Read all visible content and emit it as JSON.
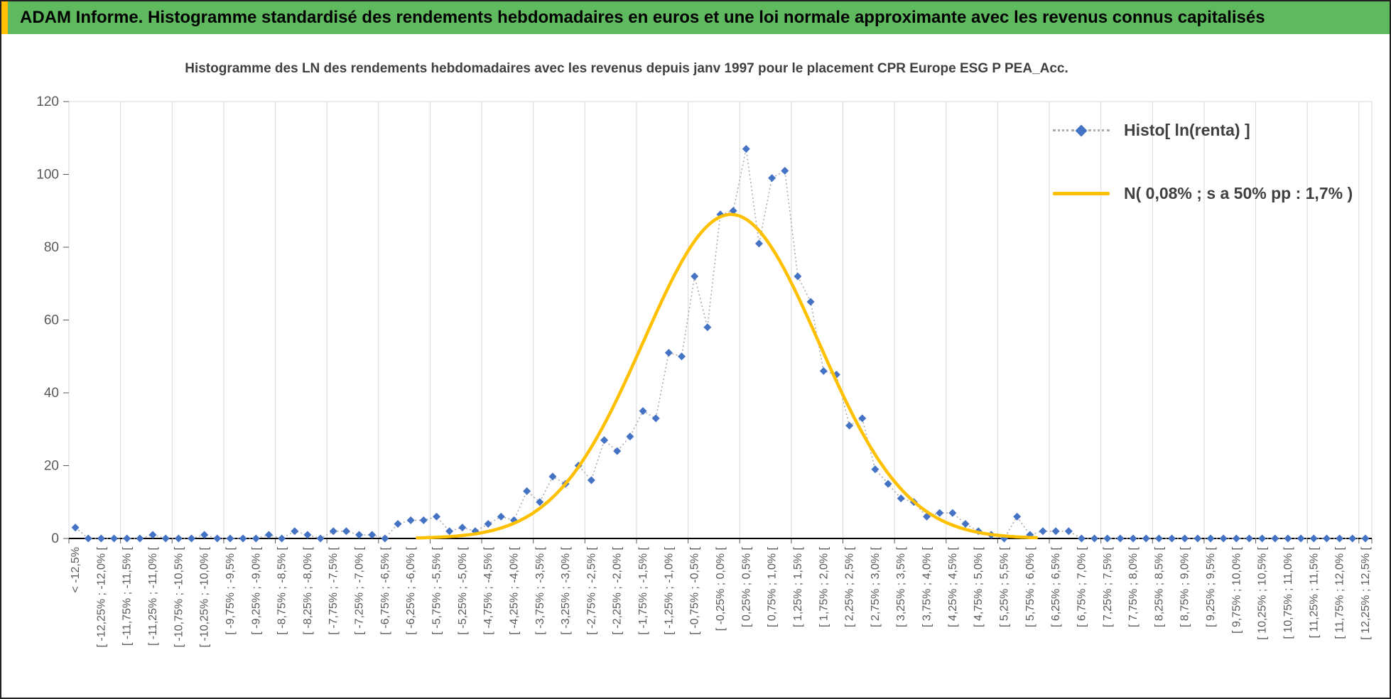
{
  "banner": {
    "text": "ADAM Informe. Histogramme standardisé des rendements hebdomadaires en euros et une loi normale approximante avec les revenus connus capitalisés"
  },
  "chart": {
    "title": "Histogramme des LN des rendements hebdomadaires avec les revenus depuis janv 1997 pour le placement CPR Europe ESG P PEA_Acc.",
    "legend": [
      {
        "label": "Histo[ ln(renta) ]",
        "marker": "blue-diamond-with-dotted-line"
      },
      {
        "label": "N( 0,08% ; s a 50% pp : 1,7% )",
        "marker": "gold-solid-line"
      }
    ]
  },
  "colors": {
    "accent_gold": "#FFC000",
    "banner_green": "#5FBA5F",
    "histogram_blue": "#4472C4",
    "dotted_gray": "#ACACAC",
    "axis_text": "#595959",
    "title_gray": "#404040",
    "grid": "#D9D9D9"
  },
  "chart_data": {
    "type": "scatter",
    "subtype": "histogram points (blue diamonds, dotted connector) with smooth normal-distribution curve overlay",
    "title": "Histogramme des LN des rendements hebdomadaires avec les revenus depuis janv 1997 pour le placement CPR Europe ESG P PEA_Acc.",
    "xlabel": "",
    "ylabel": "",
    "ylim": [
      0,
      120
    ],
    "y_ticks": [
      0,
      20,
      40,
      60,
      80,
      100,
      120
    ],
    "grid": "vertical-only",
    "legend_position": "top-right",
    "bin_width_pct": 0.25,
    "x_range_pct": [
      -12.5,
      12.5
    ],
    "x_tick_labels": [
      "< -12,5%",
      "[ -12,25% ; -12,0% [",
      "[ -11,75% ; -11,5% [",
      "[ -11,25% ; -11,0% [",
      "[ -10,75% ; -10,5% [",
      "[ -10,25% ; -10,0% [",
      "[ -9,75% ; -9,5% [",
      "[ -9,25% ; -9,0% [",
      "[ -8,75% ; -8,5% [",
      "[ -8,25% ; -8,0% [",
      "[ -7,75% ; -7,5% [",
      "[ -7,25% ; -7,0% [",
      "[ -6,75% ; -6,5% [",
      "[ -6,25% ; -6,0% [",
      "[ -5,75% ; -5,5% [",
      "[ -5,25% ; -5,0% [",
      "[ -4,75% ; -4,5% [",
      "[ -4,25% ; -4,0% [",
      "[ -3,75% ; -3,5% [",
      "[ -3,25% ; -3,0% [",
      "[ -2,75% ; -2,5% [",
      "[ -2,25% ; -2,0% [",
      "[ -1,75% ; -1,5% [",
      "[ -1,25% ; -1,0% [",
      "[ -0,75% ; -0,5% [",
      "[ -0,25% ; 0,0% [",
      "[ 0,25% ; 0,5% [",
      "[ 0,75% ; 1,0% [",
      "[ 1,25% ; 1,5% [",
      "[ 1,75% ; 2,0% [",
      "[ 2,25% ; 2,5% [",
      "[ 2,75% ; 3,0% [",
      "[ 3,25% ; 3,5% [",
      "[ 3,75% ; 4,0% [",
      "[ 4,25% ; 4,5% [",
      "[ 4,75% ; 5,0% [",
      "[ 5,25% ; 5,5% [",
      "[ 5,75% ; 6,0% [",
      "[ 6,25% ; 6,5% [",
      "[ 6,75% ; 7,0% [",
      "[ 7,25% ; 7,5% [",
      "[ 7,75% ; 8,0% [",
      "[ 8,25% ; 8,5% [",
      "[ 8,75% ; 9,0% [",
      "[ 9,25% ; 9,5% [",
      "[ 9,75% ; 10,0% [",
      "[ 10,25% ; 10,5% [",
      "[ 10,75% ; 11,0% [",
      "[ 11,25% ; 11,5% [",
      "[ 11,75% ; 12,0% [",
      "[ 12,25% ; 12,5% ["
    ],
    "series": [
      {
        "name": "Histo[ ln(renta) ]",
        "style": "blue diamond markers connected by gray dotted line",
        "values": [
          3,
          0,
          0,
          0,
          0,
          0,
          1,
          0,
          0,
          0,
          1,
          0,
          0,
          0,
          0,
          1,
          0,
          2,
          1,
          0,
          2,
          2,
          1,
          1,
          0,
          4,
          5,
          5,
          6,
          2,
          3,
          2,
          4,
          6,
          5,
          13,
          10,
          17,
          15,
          20,
          16,
          27,
          24,
          28,
          35,
          33,
          51,
          50,
          72,
          58,
          89,
          90,
          107,
          81,
          99,
          101,
          72,
          65,
          46,
          45,
          31,
          33,
          19,
          15,
          11,
          10,
          6,
          7,
          7,
          4,
          2,
          1,
          0,
          6,
          1,
          2,
          2,
          2,
          0,
          0,
          0,
          0,
          0,
          0,
          0,
          0,
          0,
          0,
          0,
          0,
          0,
          0,
          0,
          0,
          0,
          0,
          0,
          0,
          0,
          0,
          0
        ]
      },
      {
        "name": "N( 0,08% ; s a 50% pp : 1,7% )",
        "style": "smooth thick gold normal curve",
        "normal": {
          "mean_pct": 0.08,
          "sigma_pct": 1.7,
          "peak": 89
        }
      }
    ]
  }
}
